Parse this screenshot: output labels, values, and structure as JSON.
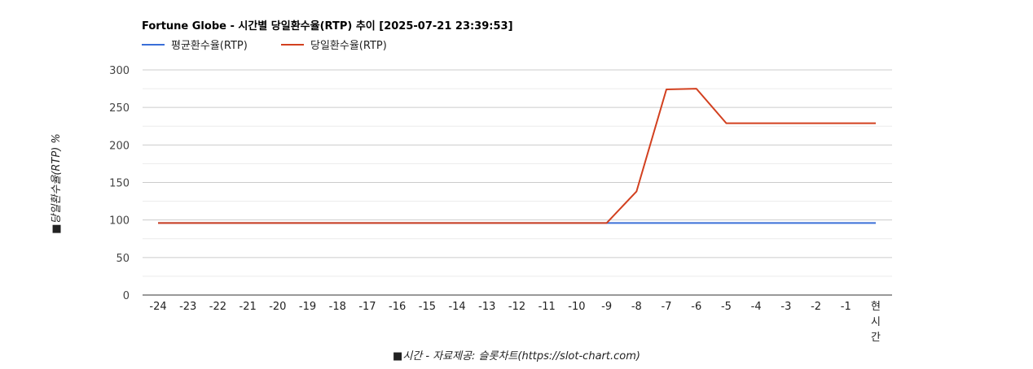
{
  "chart_data": {
    "type": "line",
    "title": "Fortune Globe - 시간별 당일환수율(RTP) 추이 [2025-07-21 23:39:53]",
    "xlabel": "■시간 - 자료제공: 슬롯차트(https://slot-chart.com)",
    "ylabel": "■당일환수율(RTP) %",
    "categories": [
      "-24",
      "-23",
      "-22",
      "-21",
      "-20",
      "-19",
      "-18",
      "-17",
      "-16",
      "-15",
      "-14",
      "-13",
      "-12",
      "-11",
      "-10",
      "-9",
      "-8",
      "-7",
      "-6",
      "-5",
      "-4",
      "-3",
      "-2",
      "-1",
      "현시간"
    ],
    "y_ticks": [
      "0",
      "50",
      "100",
      "150",
      "200",
      "250",
      "300"
    ],
    "ylim": [
      0,
      300
    ],
    "grid": true,
    "legend_position": "top-left",
    "series": [
      {
        "name": "평균환수율(RTP)",
        "color": "#3a6fd8",
        "values": [
          96,
          96,
          96,
          96,
          96,
          96,
          96,
          96,
          96,
          96,
          96,
          96,
          96,
          96,
          96,
          96,
          96,
          96,
          96,
          96,
          96,
          96,
          96,
          96,
          96
        ]
      },
      {
        "name": "당일환수율(RTP)",
        "color": "#d2401f",
        "values": [
          96,
          96,
          96,
          96,
          96,
          96,
          96,
          96,
          96,
          96,
          96,
          96,
          96,
          96,
          96,
          96,
          138,
          274,
          275,
          229,
          229,
          229,
          229,
          229,
          229
        ]
      }
    ]
  }
}
